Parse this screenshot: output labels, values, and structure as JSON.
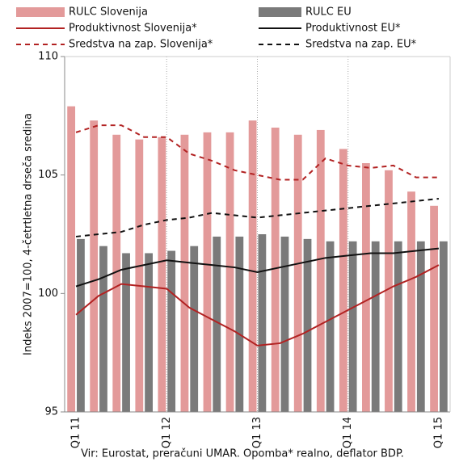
{
  "chart_data": {
    "type": "combo",
    "y_label": "Indeks 2007=100, 4-četrtletna drseča sredina",
    "source": "Vir: Eurostat, preračuni UMAR. Opomba* realno, deflator BDP.",
    "categories": [
      "Q1 11",
      null,
      null,
      null,
      "Q1 12",
      null,
      null,
      null,
      "Q1 13",
      null,
      null,
      null,
      "Q1 14",
      null,
      null,
      null,
      "Q1 15"
    ],
    "ylim": [
      95,
      110
    ],
    "yticks": [
      95,
      100,
      105,
      110
    ],
    "series": [
      {
        "name": "RULC Slovenija",
        "type": "bar",
        "color": "#e39a9a",
        "values": [
          107.9,
          107.3,
          106.7,
          106.5,
          106.6,
          106.7,
          106.8,
          106.8,
          107.3,
          107.0,
          106.7,
          106.9,
          106.1,
          105.5,
          105.2,
          104.3,
          103.7
        ]
      },
      {
        "name": "RULC EU",
        "type": "bar",
        "color": "#7a7a7a",
        "values": [
          102.3,
          102.0,
          101.7,
          101.7,
          101.8,
          102.0,
          102.4,
          102.4,
          102.5,
          102.4,
          102.3,
          102.2,
          102.2,
          102.2,
          102.2,
          102.2,
          102.2
        ]
      },
      {
        "name": "Produktivnost Slovenija*",
        "type": "line",
        "dash": false,
        "color": "#b22222",
        "values": [
          99.1,
          99.9,
          100.4,
          100.3,
          100.2,
          99.4,
          98.9,
          98.4,
          97.8,
          97.9,
          98.3,
          98.8,
          99.3,
          99.8,
          100.3,
          100.7,
          101.2
        ]
      },
      {
        "name": "Produktivnost EU*",
        "type": "line",
        "dash": false,
        "color": "#111111",
        "values": [
          100.3,
          100.6,
          101.0,
          101.2,
          101.4,
          101.3,
          101.2,
          101.1,
          100.9,
          101.1,
          101.3,
          101.5,
          101.6,
          101.7,
          101.7,
          101.8,
          101.9
        ]
      },
      {
        "name": "Sredstva na zap. Slovenija*",
        "type": "line",
        "dash": true,
        "color": "#b22222",
        "values": [
          106.8,
          107.1,
          107.1,
          106.6,
          106.6,
          105.9,
          105.6,
          105.2,
          105.0,
          104.8,
          104.8,
          105.7,
          105.4,
          105.3,
          105.4,
          104.9,
          104.9
        ]
      },
      {
        "name": "Sredstva na zap. EU*",
        "type": "line",
        "dash": true,
        "color": "#111111",
        "values": [
          102.4,
          102.5,
          102.6,
          102.9,
          103.1,
          103.2,
          103.4,
          103.3,
          103.2,
          103.3,
          103.4,
          103.5,
          103.6,
          103.7,
          103.8,
          103.9,
          104.0
        ]
      }
    ]
  }
}
